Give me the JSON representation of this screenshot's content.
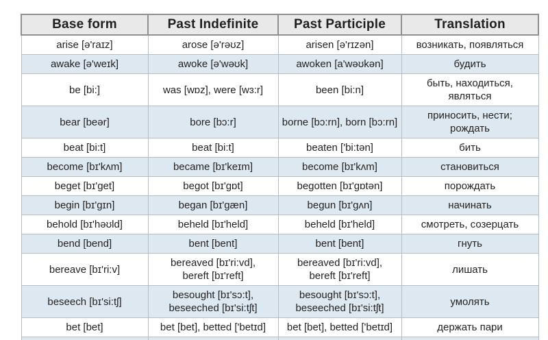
{
  "table": {
    "headers": [
      "Base form",
      "Past Indefinite",
      "Past Participle",
      "Translation"
    ],
    "rows": [
      {
        "base": "arise [ə'raɪz]",
        "past": "arose [ə'rəʊz]",
        "participle": "arisen [ə'rɪzən]",
        "translation": "возникать, появляться",
        "shade": false
      },
      {
        "base": "awake [ə'weɪk]",
        "past": "awoke [ə'wəʊk]",
        "participle": "awoken [a'wəʊkən]",
        "translation": "будить",
        "shade": true
      },
      {
        "base": "be [bi:]",
        "past": "was [wɒz], were [wɜ:r]",
        "participle": "been [bi:n]",
        "translation": "быть, находиться,\nявляться",
        "shade": false
      },
      {
        "base": "bear [beər]",
        "past": "bore [bɔ:r]",
        "participle": "borne [bɔ:rn], born [bɔ:rn]",
        "translation": "приносить, нести;\nрождать",
        "shade": true
      },
      {
        "base": "beat [bi:t]",
        "past": "beat [bi:t]",
        "participle": "beaten ['bi:tən]",
        "translation": "бить",
        "shade": false
      },
      {
        "base": "become [bɪ'kʌm]",
        "past": "became [bɪ'keɪm]",
        "participle": "become [bɪ'kʌm]",
        "translation": "становиться",
        "shade": true
      },
      {
        "base": "beget [bɪ'get]",
        "past": "begot [bɪ'gɒt]",
        "participle": "begotten [bɪ'gɒtən]",
        "translation": "порождать",
        "shade": false
      },
      {
        "base": "begin [bɪ'gɪn]",
        "past": "began [bɪ'gæn]",
        "participle": "begun [bɪ'gʌn]",
        "translation": "начинать",
        "shade": true
      },
      {
        "base": "behold [bɪ'həʊld]",
        "past": "beheld [bɪ'held]",
        "participle": "beheld [bɪ'held]",
        "translation": "смотреть, созерцать",
        "shade": false
      },
      {
        "base": "bend [bend]",
        "past": "bent [bent]",
        "participle": "bent [bent]",
        "translation": "гнуть",
        "shade": true
      },
      {
        "base": "bereave [bɪ'ri:v]",
        "past": "bereaved [bɪ'ri:vd],\nbereft [bɪ'reft]",
        "participle": "bereaved [bɪ'ri:vd],\nbereft [bɪ'reft]",
        "translation": "лишать",
        "shade": false
      },
      {
        "base": "beseech [bɪ'si:tʃ]",
        "past": "besought [bɪ'sɔ:t],\nbeseeched [bɪ'si:tʃt]",
        "participle": "besought [bɪ'sɔ:t],\nbeseeched [bɪ'si:tʃt]",
        "translation": "умолять",
        "shade": true
      },
      {
        "base": "bet [bet]",
        "past": "bet [bet], betted ['betɪd]",
        "participle": "bet [bet], betted ['betɪd]",
        "translation": "держать пари",
        "shade": false
      },
      {
        "base": "",
        "past": "",
        "participle": "",
        "translation": "",
        "shade": true
      }
    ]
  }
}
